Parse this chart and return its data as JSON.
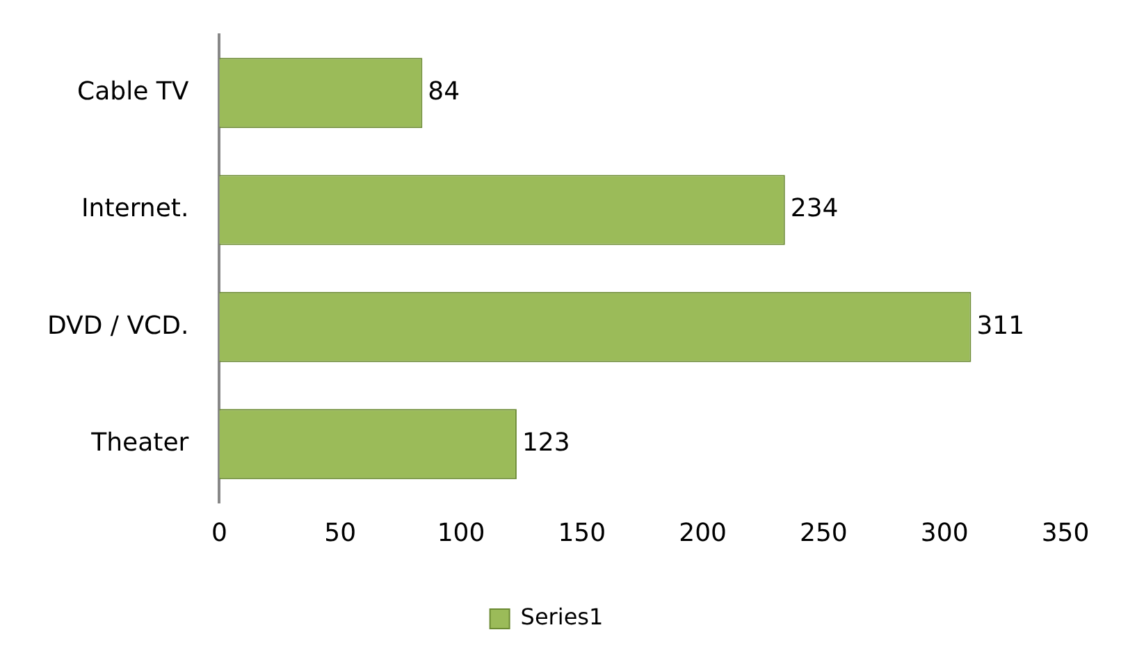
{
  "chart_data": {
    "type": "bar",
    "orientation": "horizontal",
    "categories": [
      "Cable TV",
      "Internet.",
      "DVD / VCD.",
      "Theater"
    ],
    "series": [
      {
        "name": "Series1",
        "color": "#9bbb59",
        "values": [
          84,
          234,
          311,
          123
        ]
      }
    ],
    "xlim": [
      0,
      350
    ],
    "xticks": [
      0,
      50,
      100,
      150,
      200,
      250,
      300,
      350
    ],
    "data_labels": true,
    "legend": "bottom",
    "grid": false
  }
}
